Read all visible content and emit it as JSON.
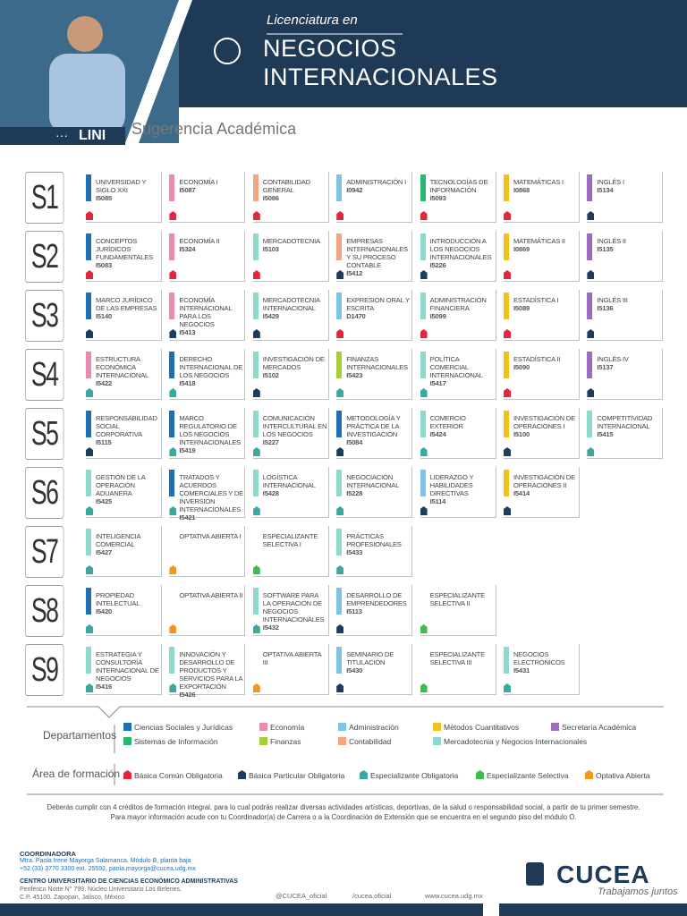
{
  "header": {
    "program_prefix": "Licenciatura en",
    "program_title": "NEGOCIOS INTERNACIONALES",
    "acronym": "LINI",
    "subtitle": "Sugerencia Académica"
  },
  "semesters": [
    {
      "label": "S1",
      "courses": [
        {
          "name": "UNIVERSIDAD Y SIGLO XXI",
          "code": "I5085",
          "dept_color": "#1e6fb8",
          "area_color": "#e3263b"
        },
        {
          "name": "ECONOMÍA I",
          "code": "I5087",
          "dept_color": "#e98bb0",
          "area_color": "#e3263b"
        },
        {
          "name": "CONTABILIDAD GENERAL",
          "code": "I5086",
          "dept_color": "#f4a582",
          "area_color": "#e3263b"
        },
        {
          "name": "ADMINISTRACIÓN I",
          "code": "I0942",
          "dept_color": "#7fc4e6",
          "area_color": "#e3263b"
        },
        {
          "name": "TECNOLOGÍAS DE INFORMACIÓN",
          "code": "I5093",
          "dept_color": "#2bb673",
          "area_color": "#e3263b"
        },
        {
          "name": "MATEMÁTICAS I",
          "code": "I0868",
          "dept_color": "#f2c21b",
          "area_color": "#e3263b"
        },
        {
          "name": "INGLÉS I",
          "code": "I5134",
          "dept_color": "#9b6cc0",
          "area_color": "#1d3c5f"
        }
      ]
    },
    {
      "label": "S2",
      "courses": [
        {
          "name": "CONCEPTOS JURÍDICOS FUNDAMENTALES",
          "code": "I5083",
          "dept_color": "#1e6fb8",
          "area_color": "#e3263b"
        },
        {
          "name": "ECONOMÍA II",
          "code": "I5324",
          "dept_color": "#e98bb0",
          "area_color": "#e3263b"
        },
        {
          "name": "MERCADOTECNIA",
          "code": "I5103",
          "dept_color": "#8fd8cc",
          "area_color": "#e3263b"
        },
        {
          "name": "EMPRESAS INTERNACIONALES Y SU PROCESO CONTABLE",
          "code": "I5412",
          "dept_color": "#f4a582",
          "area_color": "#1d3c5f"
        },
        {
          "name": "INTRODUCCIÓN A LOS NEGOCIOS INTERNACIONALES",
          "code": "I5226",
          "dept_color": "#8fd8cc",
          "area_color": "#1d3c5f"
        },
        {
          "name": "MATEMÁTICAS II",
          "code": "I0869",
          "dept_color": "#f2c21b",
          "area_color": "#e3263b"
        },
        {
          "name": "INGLÉS II",
          "code": "I5135",
          "dept_color": "#9b6cc0",
          "area_color": "#1d3c5f"
        }
      ]
    },
    {
      "label": "S3",
      "courses": [
        {
          "name": "MARCO JURÍDICO DE LAS EMPRESAS",
          "code": "I5140",
          "dept_color": "#1e6fb8",
          "area_color": "#1d3c5f"
        },
        {
          "name": "ECONOMÍA INTERNACIONAL PARA LOS NEGOCIOS",
          "code": "I5413",
          "dept_color": "#e98bb0",
          "area_color": "#1d3c5f"
        },
        {
          "name": "MERCADOTECNIA INTERNACIONAL",
          "code": "I5429",
          "dept_color": "#8fd8cc",
          "area_color": "#1d3c5f"
        },
        {
          "name": "EXPRESIÓN ORAL Y ESCRITA",
          "code": "D1470",
          "dept_color": "#7fc4e6",
          "area_color": "#e3263b"
        },
        {
          "name": "ADMINISTRACIÓN FINANCIERA",
          "code": "I5099",
          "dept_color": "#8fd8cc",
          "area_color": "#e3263b"
        },
        {
          "name": "ESTADÍSTICA I",
          "code": "I5089",
          "dept_color": "#f2c21b",
          "area_color": "#e3263b"
        },
        {
          "name": "INGLÉS III",
          "code": "I5136",
          "dept_color": "#9b6cc0",
          "area_color": "#1d3c5f"
        }
      ]
    },
    {
      "label": "S4",
      "courses": [
        {
          "name": "ESTRUCTURA ECONÓMICA INTERNACIONAL",
          "code": "I5422",
          "dept_color": "#e98bb0",
          "area_color": "#3aa99f"
        },
        {
          "name": "DERECHO INTERNACIONAL DE LOS NEGOCIOS",
          "code": "I5418",
          "dept_color": "#1e6fb8",
          "area_color": "#3aa99f"
        },
        {
          "name": "INVESTIGACIÓN DE MERCADOS",
          "code": "I5102",
          "dept_color": "#8fd8cc",
          "area_color": "#1d3c5f"
        },
        {
          "name": "FINANZAS INTERNACIONALES",
          "code": "I5423",
          "dept_color": "#a6ce39",
          "area_color": "#3aa99f"
        },
        {
          "name": "POLÍTICA COMERCIAL INTERNACIONAL",
          "code": "I5417",
          "dept_color": "#8fd8cc",
          "area_color": "#3aa99f"
        },
        {
          "name": "ESTADÍSTICA II",
          "code": "I5090",
          "dept_color": "#f2c21b",
          "area_color": "#e3263b"
        },
        {
          "name": "INGLÉS IV",
          "code": "I5137",
          "dept_color": "#9b6cc0",
          "area_color": "#1d3c5f"
        }
      ]
    },
    {
      "label": "S5",
      "courses": [
        {
          "name": "RESPONSABILIDAD SOCIAL CORPORATIVA",
          "code": "I5115",
          "dept_color": "#1e6fb8",
          "area_color": "#1d3c5f"
        },
        {
          "name": "MARCO REGULATORIO DE LOS NEGOCIOS INTERNACIONALES",
          "code": "I5419",
          "dept_color": "#1e6fb8",
          "area_color": "#3aa99f"
        },
        {
          "name": "COMUNICACIÓN INTERCULTURAL EN LOS NEGOCIOS",
          "code": "I5227",
          "dept_color": "#8fd8cc",
          "area_color": "#3aa99f"
        },
        {
          "name": "METODOLOGÍA Y PRÁCTICA DE LA INVESTIGACIÓN",
          "code": "I5084",
          "dept_color": "#1e6fb8",
          "area_color": "#1d3c5f"
        },
        {
          "name": "COMERCIO EXTERIOR",
          "code": "I5424",
          "dept_color": "#8fd8cc",
          "area_color": "#3aa99f"
        },
        {
          "name": "INVESTIGACIÓN DE OPERACIONES I",
          "code": "I5100",
          "dept_color": "#f2c21b",
          "area_color": "#1d3c5f"
        },
        {
          "name": "COMPETITIVIDAD INTERNACIONAL",
          "code": "I5415",
          "dept_color": "#8fd8cc",
          "area_color": "#3aa99f"
        }
      ]
    },
    {
      "label": "S6",
      "courses": [
        {
          "name": "GESTIÓN DE LA OPERACIÓN ADUANERA",
          "code": "I5425",
          "dept_color": "#8fd8cc",
          "area_color": "#3aa99f"
        },
        {
          "name": "TRATADOS Y ACUERDOS COMERCIALES Y DE INVERSIÓN INTERNACIONALES",
          "code": "I5421",
          "dept_color": "#1e6fb8",
          "area_color": "#3aa99f"
        },
        {
          "name": "LOGÍSTICA INTERNACIONAL",
          "code": "I5428",
          "dept_color": "#8fd8cc",
          "area_color": "#3aa99f"
        },
        {
          "name": "NEGOCIACIÓN INTERNACIONAL",
          "code": "I5228",
          "dept_color": "#8fd8cc",
          "area_color": "#3aa99f"
        },
        {
          "name": "LIDERAZGO Y HABILIDADES DIRECTIVAS",
          "code": "I5114",
          "dept_color": "#7fc4e6",
          "area_color": "#1d3c5f"
        },
        {
          "name": "INVESTIGACIÓN DE OPERACIONES II",
          "code": "I5414",
          "dept_color": "#f2c21b",
          "area_color": "#1d3c5f"
        }
      ]
    },
    {
      "label": "S7",
      "courses": [
        {
          "name": "INTELIGENCIA COMERCIAL",
          "code": "I5427",
          "dept_color": "#8fd8cc",
          "area_color": "#3aa99f"
        },
        {
          "name": "OPTATIVA ABIERTA I",
          "area_color": "#f7941d"
        },
        {
          "name": "ESPECIALIZANTE SELECTIVA I",
          "area_color": "#3dbb4c"
        },
        {
          "name": "PRÁCTICAS PROFESIONALES",
          "code": "I5433",
          "dept_color": "#8fd8cc",
          "area_color": "#3aa99f"
        }
      ]
    },
    {
      "label": "S8",
      "courses": [
        {
          "name": "PROPIEDAD INTELECTUAL",
          "code": "I5420",
          "dept_color": "#1e6fb8",
          "area_color": "#3aa99f"
        },
        {
          "name": "OPTATIVA ABIERTA II",
          "area_color": "#f7941d"
        },
        {
          "name": "SOFTWARE PARA LA OPERACIÓN DE NEGOCIOS INTERNACIONALES",
          "code": "I5432",
          "dept_color": "#8fd8cc",
          "area_color": "#3aa99f"
        },
        {
          "name": "DESARROLLO DE EMPRENDEDORES",
          "code": "I5113",
          "dept_color": "#7fc4e6",
          "area_color": "#1d3c5f"
        },
        {
          "name": "ESPECIALIZANTE SELECTIVA II",
          "area_color": "#3dbb4c"
        }
      ]
    },
    {
      "label": "S9",
      "courses": [
        {
          "name": "ESTRATEGIA Y CONSULTORÍA INTERNACIONAL DE NEGOCIOS",
          "code": "I5416",
          "dept_color": "#8fd8cc",
          "area_color": "#3aa99f"
        },
        {
          "name": "INNOVACIÓN Y DESARROLLO DE PRODUCTOS Y SERVICIOS PARA LA EXPORTACIÓN",
          "code": "I5426",
          "dept_color": "#8fd8cc",
          "area_color": "#3aa99f"
        },
        {
          "name": "OPTATIVA ABIERTA III",
          "area_color": "#f7941d"
        },
        {
          "name": "SEMINARIO DE TITULACIÓN",
          "code": "I5430",
          "dept_color": "#7fc4e6",
          "area_color": "#1d3c5f"
        },
        {
          "name": "ESPECIALIZANTE SELECTIVA III",
          "area_color": "#3dbb4c"
        },
        {
          "name": "NEGOCIOS ELECTRÓNICOS",
          "code": "I5431",
          "dept_color": "#8fd8cc",
          "area_color": "#3aa99f"
        }
      ]
    }
  ],
  "legend": {
    "departments_title": "Departamentos",
    "departments": [
      {
        "name": "Ciencias Sociales y Jurídicas",
        "color": "#1e6fb8"
      },
      {
        "name": "Economía",
        "color": "#e98bb0"
      },
      {
        "name": "Administración",
        "color": "#7fc4e6"
      },
      {
        "name": "Métodos Cuantitativos",
        "color": "#f2c21b"
      },
      {
        "name": "Secretaría Académica",
        "color": "#9b6cc0"
      },
      {
        "name": "Sistemas de Información",
        "color": "#2bb673"
      },
      {
        "name": "Finanzas",
        "color": "#a6ce39"
      },
      {
        "name": "Contabilidad",
        "color": "#f4a582"
      },
      {
        "name": "Mercadotecnia y Negocios Internacionales",
        "color": "#8fd8cc"
      }
    ],
    "areas_title": "Área de formación",
    "areas": [
      {
        "name": "Básica Común Obligatoria",
        "color": "#e3263b"
      },
      {
        "name": "Básica Particular Obligatoria",
        "color": "#1d3c5f"
      },
      {
        "name": "Especializante Obligatoria",
        "color": "#3aa99f"
      },
      {
        "name": "Especializante Selectiva",
        "color": "#3dbb4c"
      },
      {
        "name": "Optativa Abierta",
        "color": "#f7941d"
      }
    ]
  },
  "note": [
    "Deberás cumplir con 4 créditos de formación integral, para lo cual podrás realizar diversas actividades artísticas, deportivas, de la salud o responsabilidad social, a partir de tu primer semestre.",
    "Para mayor información acude con tu Coordinador(a) de Carrera o a la Coordinación de Extensión que se encuentra en el segundo piso del módulo O."
  ],
  "footer": {
    "coordinator_title": "COORDINADORA",
    "coordinator_lines": [
      "Mtra. Paola Irene Mayorga Salamanca, Módulo B, planta baja",
      "+52 (33) 3770 3300 ext. 25592, paola.mayorga@cucea.udg.mx"
    ],
    "center_title": "CENTRO UNIVERSITARIO DE CIENCIAS ECONÓMICO ADMINISTRATIVAS",
    "center_lines": [
      "Periférico Norte N° 799, Núcleo Universitario Los Belenes,",
      "C.P. 45100, Zapopan, Jalisco, México."
    ],
    "twitter": "@CUCEA_oficial",
    "facebook": "/cucea.oficial",
    "website": "www.cucea.udg.mx",
    "logo": "CUCEA",
    "tagline": "Trabajamos juntos"
  }
}
